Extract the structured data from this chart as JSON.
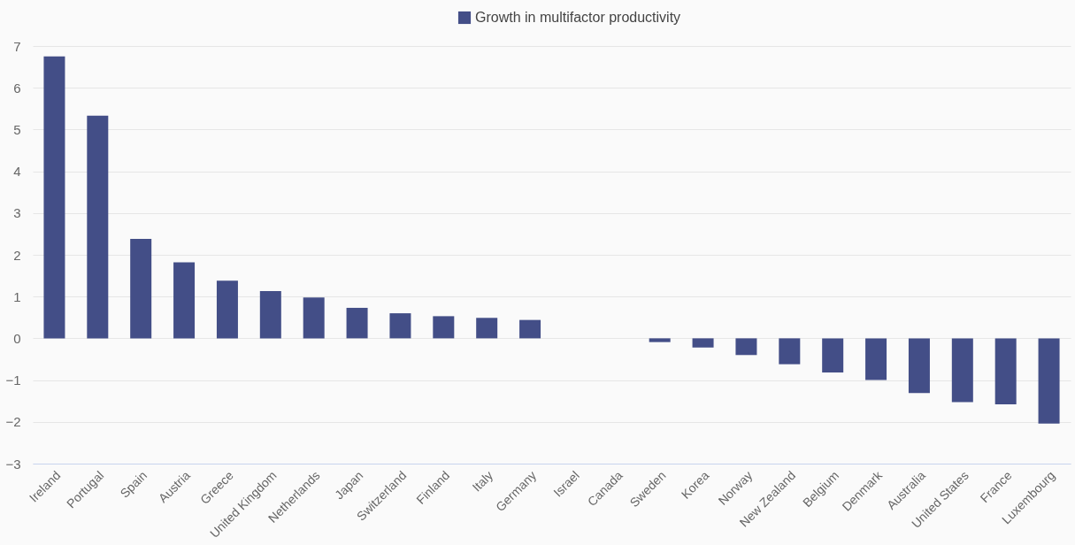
{
  "chart_data": {
    "type": "bar",
    "categories": [
      "Ireland",
      "Portugal",
      "Spain",
      "Austria",
      "Greece",
      "United Kingdom",
      "Netherlands",
      "Japan",
      "Switzerland",
      "Finland",
      "Italy",
      "Germany",
      "Israel",
      "Canada",
      "Sweden",
      "Korea",
      "Norway",
      "New Zealand",
      "Belgium",
      "Denmark",
      "Australia",
      "United States",
      "France",
      "Luxembourg"
    ],
    "series": [
      {
        "name": "Growth in multifactor productivity",
        "color": "#434e87",
        "values": [
          6.75,
          5.33,
          2.38,
          1.82,
          1.38,
          1.13,
          0.98,
          0.73,
          0.6,
          0.53,
          0.49,
          0.44,
          null,
          null,
          -0.09,
          -0.22,
          -0.4,
          -0.62,
          -0.82,
          -1.0,
          -1.31,
          -1.53,
          -1.58,
          -2.04
        ]
      }
    ],
    "ylim": [
      -3,
      7
    ],
    "yticks": [
      -3,
      -2,
      -1,
      0,
      1,
      2,
      3,
      4,
      5,
      6,
      7
    ],
    "grid": "y",
    "legend": "top"
  }
}
